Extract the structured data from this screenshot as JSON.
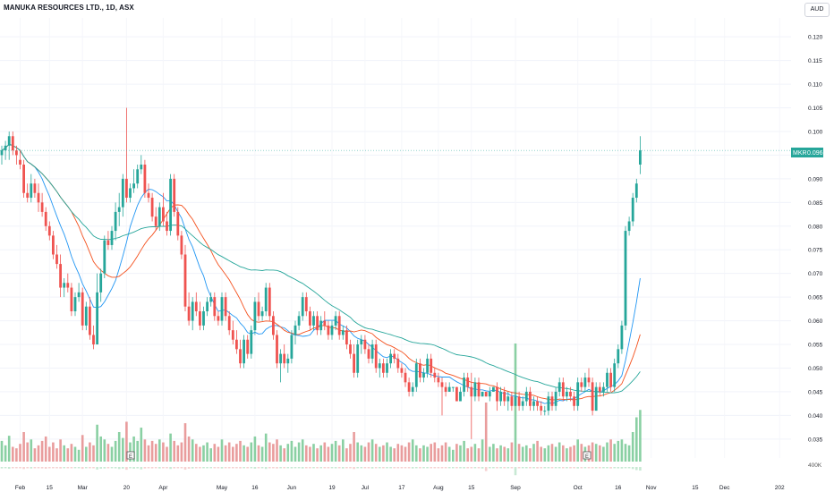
{
  "header": {
    "title": "MANUKA RESOURCES LTD., 1D, ASX",
    "currency": "AUD"
  },
  "price_tag": {
    "symbol": "MKR",
    "price": "0.096"
  },
  "colors": {
    "up": "#26a69a",
    "down": "#ef5350",
    "ma_fast": "#2196f3",
    "ma_mid": "#f4511e",
    "ma_slow": "#26a69a",
    "vol_up": "#76c893",
    "vol_down": "#e58c8c"
  },
  "chart_data": {
    "type": "candlestick",
    "title": "MANUKA RESOURCES LTD., 1D, ASX",
    "y_axis": {
      "ylim": [
        0.031,
        0.124
      ],
      "ticks": [
        "0.120",
        "0.115",
        "0.110",
        "0.105",
        "0.100",
        "0.095",
        "0.090",
        "0.085",
        "0.080",
        "0.075",
        "0.070",
        "0.065",
        "0.060",
        "0.055",
        "0.050",
        "0.045",
        "0.040",
        "0.035"
      ]
    },
    "x_axis": {
      "tick_labels": [
        "Feb",
        "15",
        "Mar",
        "20",
        "Apr",
        "May",
        "16",
        "Jun",
        "19",
        "Jul",
        "17",
        "Aug",
        "15",
        "Sep",
        "Oct",
        "16",
        "Nov",
        "15",
        "Dec",
        "202"
      ],
      "tick_positions": [
        5,
        13,
        22,
        34,
        44,
        60,
        69,
        79,
        90,
        99,
        109,
        119,
        128,
        140,
        157,
        168,
        177,
        189,
        197,
        212
      ]
    },
    "volume_axis": {
      "label": "400K"
    },
    "last_close": 0.096,
    "candles": [
      [
        0.095,
        0.097,
        0.093,
        0.096
      ],
      [
        0.096,
        0.098,
        0.094,
        0.097
      ],
      [
        0.097,
        0.1,
        0.094,
        0.099
      ],
      [
        0.099,
        0.1,
        0.095,
        0.096
      ],
      [
        0.096,
        0.097,
        0.093,
        0.095
      ],
      [
        0.094,
        0.096,
        0.092,
        0.093
      ],
      [
        0.093,
        0.094,
        0.086,
        0.087
      ],
      [
        0.087,
        0.089,
        0.085,
        0.086
      ],
      [
        0.086,
        0.091,
        0.085,
        0.089
      ],
      [
        0.089,
        0.09,
        0.086,
        0.087
      ],
      [
        0.087,
        0.089,
        0.083,
        0.085
      ],
      [
        0.085,
        0.087,
        0.082,
        0.083
      ],
      [
        0.083,
        0.084,
        0.079,
        0.08
      ],
      [
        0.08,
        0.081,
        0.077,
        0.078
      ],
      [
        0.078,
        0.079,
        0.073,
        0.074
      ],
      [
        0.074,
        0.076,
        0.071,
        0.072
      ],
      [
        0.072,
        0.074,
        0.065,
        0.067
      ],
      [
        0.067,
        0.069,
        0.065,
        0.068
      ],
      [
        0.068,
        0.07,
        0.066,
        0.067
      ],
      [
        0.067,
        0.068,
        0.061,
        0.062
      ],
      [
        0.062,
        0.066,
        0.061,
        0.065
      ],
      [
        0.065,
        0.068,
        0.064,
        0.066
      ],
      [
        0.066,
        0.067,
        0.058,
        0.059
      ],
      [
        0.059,
        0.064,
        0.058,
        0.063
      ],
      [
        0.063,
        0.065,
        0.056,
        0.057
      ],
      [
        0.057,
        0.059,
        0.054,
        0.055
      ],
      [
        0.055,
        0.07,
        0.055,
        0.066
      ],
      [
        0.066,
        0.071,
        0.064,
        0.07
      ],
      [
        0.07,
        0.078,
        0.069,
        0.077
      ],
      [
        0.077,
        0.079,
        0.075,
        0.076
      ],
      [
        0.076,
        0.08,
        0.075,
        0.079
      ],
      [
        0.079,
        0.085,
        0.077,
        0.083
      ],
      [
        0.083,
        0.087,
        0.08,
        0.084
      ],
      [
        0.084,
        0.091,
        0.082,
        0.09
      ],
      [
        0.09,
        0.105,
        0.085,
        0.086
      ],
      [
        0.086,
        0.089,
        0.085,
        0.088
      ],
      [
        0.088,
        0.092,
        0.087,
        0.089
      ],
      [
        0.089,
        0.093,
        0.088,
        0.092
      ],
      [
        0.092,
        0.095,
        0.091,
        0.093
      ],
      [
        0.093,
        0.094,
        0.086,
        0.087
      ],
      [
        0.087,
        0.089,
        0.085,
        0.086
      ],
      [
        0.086,
        0.087,
        0.081,
        0.082
      ],
      [
        0.082,
        0.084,
        0.079,
        0.08
      ],
      [
        0.08,
        0.085,
        0.079,
        0.084
      ],
      [
        0.084,
        0.087,
        0.08,
        0.081
      ],
      [
        0.081,
        0.083,
        0.078,
        0.079
      ],
      [
        0.079,
        0.091,
        0.078,
        0.09
      ],
      [
        0.09,
        0.091,
        0.082,
        0.083
      ],
      [
        0.083,
        0.084,
        0.077,
        0.078
      ],
      [
        0.078,
        0.079,
        0.073,
        0.074
      ],
      [
        0.074,
        0.076,
        0.062,
        0.063
      ],
      [
        0.063,
        0.066,
        0.059,
        0.06
      ],
      [
        0.06,
        0.065,
        0.058,
        0.064
      ],
      [
        0.064,
        0.066,
        0.061,
        0.062
      ],
      [
        0.062,
        0.064,
        0.058,
        0.059
      ],
      [
        0.059,
        0.063,
        0.058,
        0.062
      ],
      [
        0.062,
        0.065,
        0.061,
        0.064
      ],
      [
        0.064,
        0.066,
        0.063,
        0.065
      ],
      [
        0.065,
        0.066,
        0.06,
        0.061
      ],
      [
        0.061,
        0.062,
        0.059,
        0.06
      ],
      [
        0.06,
        0.066,
        0.059,
        0.065
      ],
      [
        0.065,
        0.066,
        0.06,
        0.061
      ],
      [
        0.061,
        0.062,
        0.057,
        0.058
      ],
      [
        0.058,
        0.06,
        0.055,
        0.056
      ],
      [
        0.056,
        0.058,
        0.053,
        0.054
      ],
      [
        0.054,
        0.056,
        0.05,
        0.051
      ],
      [
        0.051,
        0.057,
        0.05,
        0.056
      ],
      [
        0.056,
        0.057,
        0.052,
        0.053
      ],
      [
        0.053,
        0.059,
        0.052,
        0.058
      ],
      [
        0.058,
        0.065,
        0.057,
        0.064
      ],
      [
        0.064,
        0.066,
        0.06,
        0.061
      ],
      [
        0.061,
        0.063,
        0.06,
        0.062
      ],
      [
        0.062,
        0.068,
        0.061,
        0.067
      ],
      [
        0.067,
        0.068,
        0.06,
        0.061
      ],
      [
        0.061,
        0.062,
        0.056,
        0.057
      ],
      [
        0.057,
        0.058,
        0.05,
        0.051
      ],
      [
        0.051,
        0.054,
        0.047,
        0.053
      ],
      [
        0.053,
        0.055,
        0.05,
        0.051
      ],
      [
        0.051,
        0.053,
        0.049,
        0.052
      ],
      [
        0.052,
        0.058,
        0.051,
        0.057
      ],
      [
        0.057,
        0.06,
        0.055,
        0.059
      ],
      [
        0.059,
        0.062,
        0.058,
        0.061
      ],
      [
        0.061,
        0.066,
        0.06,
        0.065
      ],
      [
        0.065,
        0.066,
        0.061,
        0.062
      ],
      [
        0.062,
        0.063,
        0.058,
        0.059
      ],
      [
        0.059,
        0.062,
        0.058,
        0.061
      ],
      [
        0.061,
        0.062,
        0.057,
        0.058
      ],
      [
        0.058,
        0.061,
        0.057,
        0.06
      ],
      [
        0.06,
        0.062,
        0.058,
        0.059
      ],
      [
        0.059,
        0.06,
        0.056,
        0.057
      ],
      [
        0.057,
        0.06,
        0.056,
        0.059
      ],
      [
        0.059,
        0.062,
        0.058,
        0.061
      ],
      [
        0.061,
        0.062,
        0.056,
        0.057
      ],
      [
        0.057,
        0.059,
        0.056,
        0.058
      ],
      [
        0.058,
        0.059,
        0.054,
        0.055
      ],
      [
        0.055,
        0.056,
        0.052,
        0.053
      ],
      [
        0.053,
        0.055,
        0.048,
        0.049
      ],
      [
        0.049,
        0.056,
        0.048,
        0.055
      ],
      [
        0.055,
        0.057,
        0.053,
        0.056
      ],
      [
        0.056,
        0.057,
        0.053,
        0.054
      ],
      [
        0.054,
        0.055,
        0.051,
        0.052
      ],
      [
        0.052,
        0.056,
        0.051,
        0.055
      ],
      [
        0.055,
        0.056,
        0.049,
        0.05
      ],
      [
        0.05,
        0.052,
        0.048,
        0.051
      ],
      [
        0.051,
        0.052,
        0.048,
        0.049
      ],
      [
        0.049,
        0.052,
        0.048,
        0.051
      ],
      [
        0.051,
        0.054,
        0.05,
        0.053
      ],
      [
        0.053,
        0.054,
        0.051,
        0.052
      ],
      [
        0.052,
        0.053,
        0.049,
        0.05
      ],
      [
        0.05,
        0.051,
        0.048,
        0.049
      ],
      [
        0.049,
        0.05,
        0.046,
        0.047
      ],
      [
        0.047,
        0.048,
        0.044,
        0.045
      ],
      [
        0.045,
        0.047,
        0.044,
        0.046
      ],
      [
        0.046,
        0.052,
        0.045,
        0.051
      ],
      [
        0.051,
        0.052,
        0.047,
        0.048
      ],
      [
        0.048,
        0.05,
        0.047,
        0.049
      ],
      [
        0.049,
        0.053,
        0.048,
        0.052
      ],
      [
        0.052,
        0.053,
        0.048,
        0.049
      ],
      [
        0.049,
        0.05,
        0.047,
        0.048
      ],
      [
        0.048,
        0.049,
        0.046,
        0.047
      ],
      [
        0.047,
        0.048,
        0.04,
        0.046
      ],
      [
        0.046,
        0.047,
        0.044,
        0.045
      ],
      [
        0.045,
        0.047,
        0.045,
        0.046
      ],
      [
        0.046,
        0.046,
        0.045,
        0.046
      ],
      [
        0.046,
        0.046,
        0.043,
        0.043
      ],
      [
        0.043,
        0.046,
        0.043,
        0.045
      ],
      [
        0.045,
        0.049,
        0.044,
        0.048
      ],
      [
        0.048,
        0.049,
        0.045,
        0.046
      ],
      [
        0.046,
        0.049,
        0.035,
        0.044
      ],
      [
        0.044,
        0.048,
        0.043,
        0.047
      ],
      [
        0.047,
        0.048,
        0.043,
        0.044
      ],
      [
        0.044,
        0.045,
        0.044,
        0.045
      ],
      [
        0.045,
        0.045,
        0.044,
        0.044
      ],
      [
        0.044,
        0.046,
        0.043,
        0.045
      ],
      [
        0.045,
        0.046,
        0.045,
        0.046
      ],
      [
        0.046,
        0.047,
        0.041,
        0.043
      ],
      [
        0.043,
        0.046,
        0.042,
        0.045
      ],
      [
        0.045,
        0.046,
        0.042,
        0.043
      ],
      [
        0.043,
        0.045,
        0.041,
        0.044
      ],
      [
        0.044,
        0.045,
        0.041,
        0.042
      ],
      [
        0.042,
        0.045,
        0.042,
        0.044
      ],
      [
        0.044,
        0.045,
        0.041,
        0.042
      ],
      [
        0.042,
        0.044,
        0.041,
        0.043
      ],
      [
        0.043,
        0.046,
        0.042,
        0.045
      ],
      [
        0.045,
        0.046,
        0.041,
        0.042
      ],
      [
        0.042,
        0.044,
        0.041,
        0.043
      ],
      [
        0.043,
        0.044,
        0.041,
        0.042
      ],
      [
        0.042,
        0.043,
        0.04,
        0.041
      ],
      [
        0.041,
        0.042,
        0.04,
        0.041
      ],
      [
        0.041,
        0.045,
        0.04,
        0.044
      ],
      [
        0.044,
        0.045,
        0.041,
        0.042
      ],
      [
        0.042,
        0.046,
        0.041,
        0.045
      ],
      [
        0.045,
        0.048,
        0.044,
        0.047
      ],
      [
        0.047,
        0.048,
        0.043,
        0.044
      ],
      [
        0.044,
        0.046,
        0.043,
        0.045
      ],
      [
        0.045,
        0.046,
        0.043,
        0.044
      ],
      [
        0.044,
        0.045,
        0.041,
        0.042
      ],
      [
        0.042,
        0.048,
        0.041,
        0.047
      ],
      [
        0.047,
        0.048,
        0.045,
        0.046
      ],
      [
        0.046,
        0.049,
        0.045,
        0.048
      ],
      [
        0.048,
        0.05,
        0.046,
        0.047
      ],
      [
        0.047,
        0.048,
        0.04,
        0.041
      ],
      [
        0.041,
        0.047,
        0.041,
        0.046
      ],
      [
        0.046,
        0.047,
        0.044,
        0.045
      ],
      [
        0.045,
        0.047,
        0.044,
        0.046
      ],
      [
        0.046,
        0.05,
        0.045,
        0.049
      ],
      [
        0.049,
        0.05,
        0.045,
        0.046
      ],
      [
        0.046,
        0.052,
        0.045,
        0.051
      ],
      [
        0.051,
        0.055,
        0.05,
        0.054
      ],
      [
        0.054,
        0.06,
        0.053,
        0.059
      ],
      [
        0.059,
        0.08,
        0.058,
        0.079
      ],
      [
        0.079,
        0.082,
        0.078,
        0.081
      ],
      [
        0.081,
        0.087,
        0.08,
        0.086
      ],
      [
        0.086,
        0.09,
        0.085,
        0.089
      ],
      [
        0.093,
        0.099,
        0.091,
        0.096
      ]
    ],
    "volume": [
      28,
      22,
      35,
      20,
      18,
      24,
      40,
      26,
      30,
      18,
      22,
      28,
      34,
      20,
      26,
      18,
      30,
      22,
      18,
      24,
      20,
      16,
      36,
      20,
      26,
      22,
      50,
      34,
      30,
      24,
      20,
      28,
      40,
      32,
      54,
      26,
      34,
      28,
      46,
      30,
      22,
      28,
      24,
      30,
      26,
      20,
      38,
      28,
      22,
      26,
      52,
      34,
      30,
      24,
      20,
      22,
      26,
      18,
      24,
      20,
      30,
      22,
      26,
      20,
      24,
      28,
      22,
      20,
      26,
      34,
      22,
      20,
      38,
      26,
      24,
      30,
      22,
      18,
      24,
      28,
      20,
      26,
      30,
      22,
      20,
      24,
      18,
      22,
      26,
      20,
      24,
      28,
      22,
      30,
      18,
      24,
      40,
      26,
      22,
      20,
      26,
      30,
      24,
      20,
      22,
      26,
      20,
      18,
      24,
      22,
      20,
      26,
      30,
      22,
      18,
      22,
      20,
      24,
      26,
      18,
      22,
      26,
      20,
      16,
      24,
      22,
      28,
      18,
      20,
      24,
      18,
      30,
      80,
      20,
      24,
      18,
      22,
      20,
      18,
      26,
      160,
      24,
      20,
      22,
      18,
      24,
      28,
      20,
      18,
      22,
      24,
      20,
      26,
      22,
      18,
      20,
      22,
      30,
      24,
      20,
      22,
      26,
      24,
      22,
      20,
      26,
      30,
      24,
      28,
      30,
      24,
      22,
      40,
      60,
      70,
      54,
      60,
      48,
      44
    ]
  }
}
